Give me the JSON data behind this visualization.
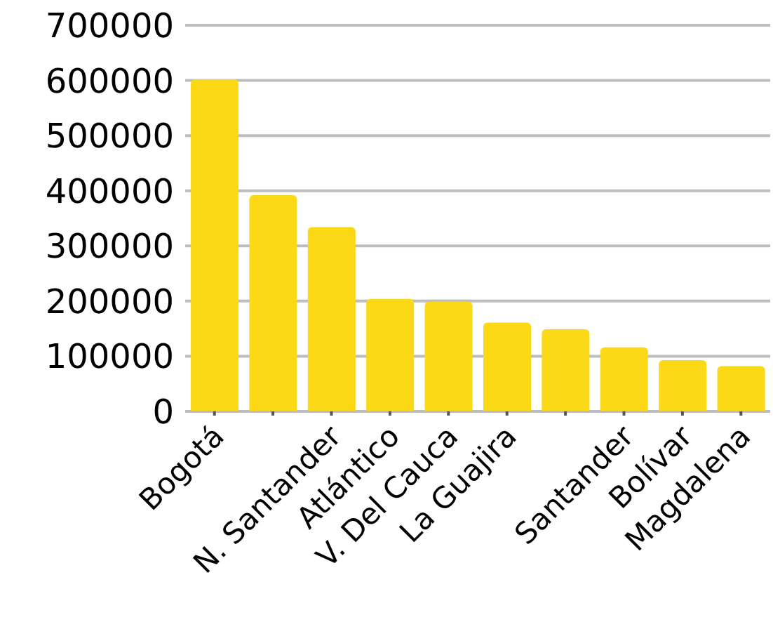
{
  "chart_data": {
    "type": "bar",
    "categories": [
      "Bogotá",
      null,
      "N. Santander",
      "Atlántico",
      "V. Del Cauca",
      "La Guajira",
      null,
      "Santander",
      "Bolívar",
      "Magdalena"
    ],
    "values": [
      602000,
      392000,
      334000,
      204000,
      199000,
      161000,
      149000,
      116000,
      93000,
      82000
    ],
    "color": "#fcd916",
    "ylim": [
      0,
      700000
    ],
    "yticks": [
      0,
      100000,
      200000,
      300000,
      400000,
      500000,
      600000,
      700000
    ],
    "grid": "y"
  }
}
